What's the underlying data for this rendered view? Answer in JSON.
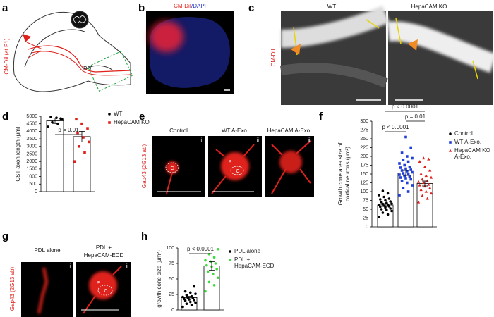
{
  "panel_letters": [
    "a",
    "b",
    "c",
    "d",
    "e",
    "f",
    "g",
    "h"
  ],
  "panel_a": {
    "tracer": "CM-DiI (at P1)",
    "pd": "PD"
  },
  "panel_b": {
    "stain_red": "CM-DiI",
    "stain_blue": "/DAPI"
  },
  "panel_c": {
    "titles": [
      "WT",
      "HepaCAM KO"
    ],
    "stain": "CM-DiI"
  },
  "panel_e": {
    "titles": [
      "Control",
      "WT A-Exo.",
      "HepaCAM A-Exo."
    ],
    "stain": "Gap43 (2G13 ab)",
    "numerals": [
      "i",
      "ii",
      "iii"
    ],
    "regions": [
      "C",
      "P",
      "C"
    ]
  },
  "panel_g": {
    "titles": [
      "PDL alone",
      [
        "PDL +",
        "HepaCAM-ECD"
      ]
    ],
    "stain": "Gap43 (2G13 ab)",
    "numerals": [
      "i",
      "ii"
    ],
    "regions": [
      "P",
      "C"
    ]
  },
  "chart_data": [
    {
      "type": "bar",
      "ylabel": [
        "CST axon length (μm)"
      ],
      "ylim": [
        0,
        5000
      ],
      "yticks": [
        0,
        500,
        1000,
        1500,
        2000,
        2500,
        3000,
        3500,
        4000,
        4500,
        5000
      ],
      "series": [
        {
          "name": "WT",
          "color": "#000000",
          "marker": "circle",
          "value": 4700,
          "error": 180,
          "points": [
            4300,
            4500,
            4600,
            4800,
            4900,
            4950,
            4850
          ]
        },
        {
          "name": "HepaCAM KO",
          "color": "#e0201b",
          "marker": "square",
          "value": 3650,
          "error": 350,
          "points": [
            2000,
            2600,
            3000,
            3300,
            3600,
            3900,
            4200,
            4500,
            4800
          ]
        }
      ],
      "annotations": [
        "p = 0.01"
      ]
    },
    {
      "type": "bar",
      "ylabel": [
        "Growth cone area size of",
        "cortical neurons (μm²)"
      ],
      "ylim": [
        0,
        300
      ],
      "yticks": [
        0,
        25,
        50,
        75,
        100,
        125,
        150,
        175,
        200,
        225,
        250,
        275,
        300
      ],
      "series": [
        {
          "name": "Control",
          "color": "#000000",
          "marker": "circle",
          "value": 62,
          "error": 4,
          "points": [
            28,
            35,
            40,
            45,
            48,
            50,
            52,
            55,
            57,
            58,
            60,
            62,
            63,
            65,
            66,
            68,
            70,
            72,
            75,
            78,
            80,
            85,
            90,
            95,
            102
          ]
        },
        {
          "name": "WT A-Exo.",
          "color": "#1f3fd6",
          "marker": "square",
          "value": 153,
          "error": 7,
          "points": [
            90,
            100,
            110,
            118,
            125,
            130,
            135,
            138,
            140,
            143,
            145,
            148,
            150,
            152,
            155,
            158,
            160,
            162,
            165,
            168,
            170,
            175,
            180,
            185,
            190,
            195,
            200,
            210,
            225,
            255
          ]
        },
        {
          "name": [
            "HepaCAM KO",
            "A-Exo."
          ],
          "color": "#e0201b",
          "marker": "triangle",
          "value": 123,
          "error": 7,
          "points": [
            70,
            80,
            88,
            95,
            100,
            105,
            110,
            115,
            118,
            120,
            125,
            128,
            130,
            135,
            140,
            145,
            150,
            160,
            170,
            185,
            192,
            195
          ]
        }
      ],
      "annotations": [
        "p < 0.0001",
        "p < 0.0001",
        "p = 0.01"
      ]
    },
    {
      "type": "bar",
      "ylabel": [
        "growth cone size (μm²)"
      ],
      "ylim": [
        0,
        100
      ],
      "yticks": [
        0,
        25,
        50,
        75,
        100
      ],
      "series": [
        {
          "name": "PDL alone",
          "color": "#000000",
          "marker": "circle",
          "value": 20,
          "error": 2,
          "points": [
            5,
            8,
            10,
            12,
            13,
            15,
            16,
            17,
            18,
            19,
            20,
            21,
            22,
            24,
            26,
            28,
            30,
            38
          ]
        },
        {
          "name": [
            "PDL +",
            "HepaCAM-ECD"
          ],
          "color": "#3ddc3d",
          "marker": "circle",
          "value": 71,
          "error": 7,
          "points": [
            30,
            40,
            45,
            52,
            58,
            62,
            66,
            70,
            72,
            75,
            78,
            80,
            85,
            90,
            98
          ]
        }
      ],
      "annotations": [
        "p < 0.0001"
      ]
    }
  ]
}
